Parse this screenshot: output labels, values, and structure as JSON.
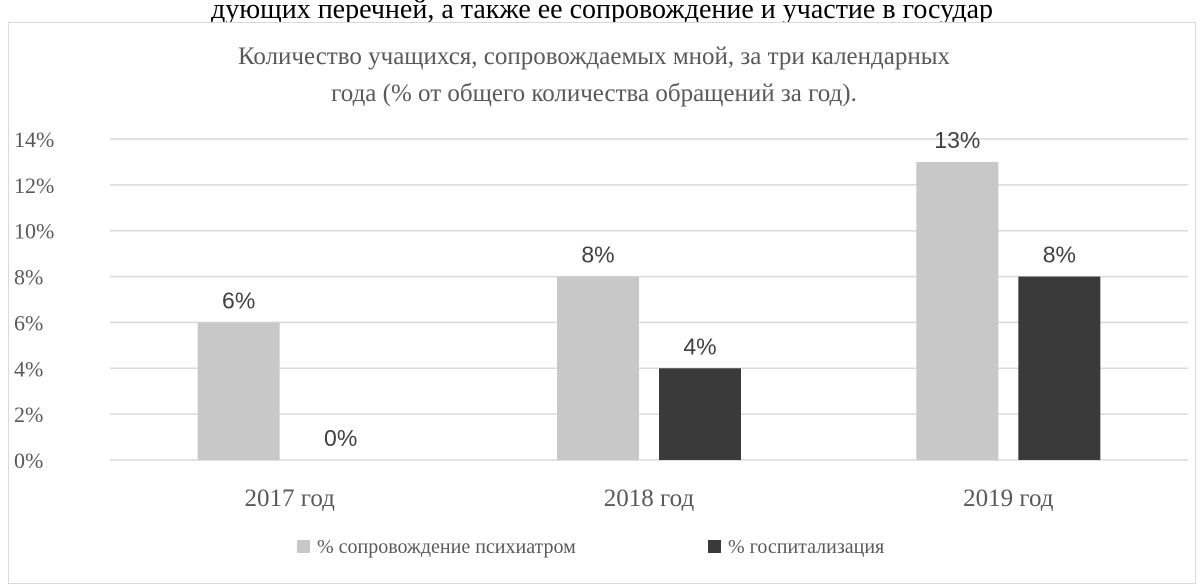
{
  "page_top_text": "дующих перечней, а также ее сопровождение и участие в государ",
  "chart_data": {
    "type": "bar",
    "title": "Количество учащихся, сопровождаемых мной, за три календарных года (% от общего количества обращений за год).",
    "title_lines": [
      "Количество учащихся, сопровождаемых мной, за три календарных",
      "года (% от общего количества обращений за год)."
    ],
    "categories": [
      "2017 год",
      "2018 год",
      "2019 год"
    ],
    "series": [
      {
        "name": "% сопровождение психиатром",
        "values": [
          6,
          8,
          13
        ],
        "labels": [
          "6%",
          "8%",
          "13%"
        ],
        "color": "#c8c8c8"
      },
      {
        "name": "% госпитализация",
        "values": [
          0,
          4,
          8
        ],
        "labels": [
          "0%",
          "4%",
          "8%"
        ],
        "color": "#3a3a3a"
      }
    ],
    "ylim": [
      0,
      14
    ],
    "yticks": [
      0,
      2,
      4,
      6,
      8,
      10,
      12,
      14
    ],
    "ytick_labels": [
      "0%",
      "2%",
      "4%",
      "6%",
      "8%",
      "10%",
      "12%",
      "14%"
    ],
    "grid": true,
    "legend_position": "bottom",
    "gridline_color": "#d9d9d9"
  }
}
